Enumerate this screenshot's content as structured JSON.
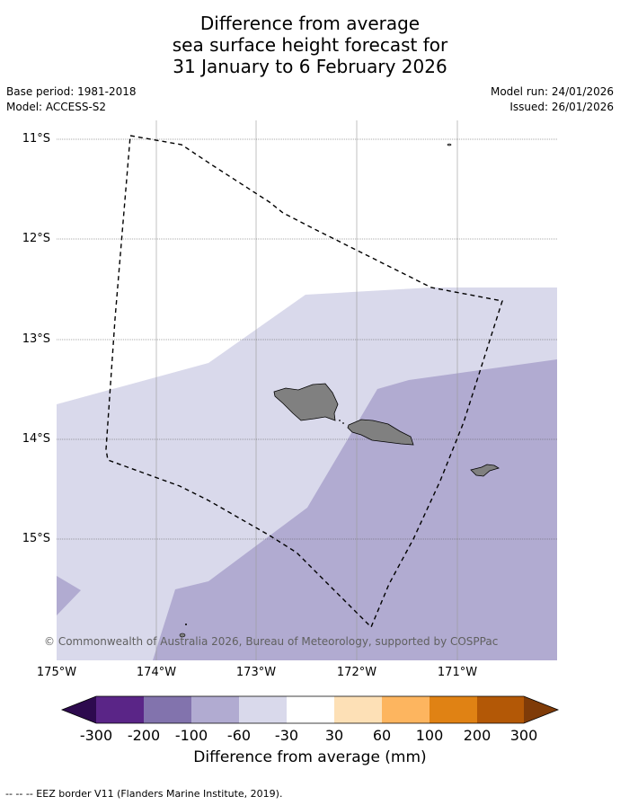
{
  "title": {
    "line1": "Difference from average",
    "line2": "sea surface height forecast for",
    "line3": "31 January to 6 February 2026"
  },
  "meta": {
    "base_period": "Base period: 1981-2018",
    "model": "Model: ACCESS-S2",
    "model_run": "Model run: 24/01/2026",
    "issued": "Issued: 26/01/2026"
  },
  "axes": {
    "lat_labels": [
      "11°S",
      "12°S",
      "13°S",
      "14°S",
      "15°S"
    ],
    "lon_labels": [
      "175°W",
      "174°W",
      "173°W",
      "172°W",
      "171°W"
    ]
  },
  "colorbar": {
    "tick_labels": [
      "-300",
      "-200",
      "-100",
      "-60",
      "-30",
      "30",
      "60",
      "100",
      "200",
      "300"
    ],
    "colors": [
      "#2d0a4e",
      "#5a2587",
      "#8273ad",
      "#b1abd1",
      "#d9d9eb",
      "#ffffff",
      "#fde0b6",
      "#fdb55f",
      "#e08214",
      "#b35806",
      "#7f3b08"
    ],
    "title": "Difference from average (mm)"
  },
  "copyright": "© Commonwealth of Australia 2026, Bureau of Meteorology, supported by COSPPac",
  "footer": "--  --  -- EEZ border V11 (Flanders Marine Institute, 2019)."
}
